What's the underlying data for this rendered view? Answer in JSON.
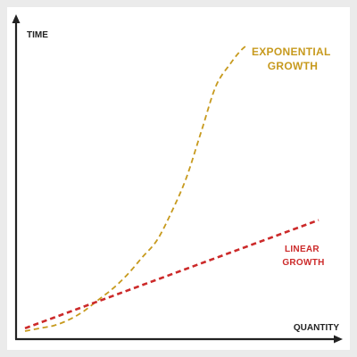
{
  "chart_data": {
    "type": "line",
    "title": "",
    "xlabel": "QUANTITY",
    "ylabel": "TIME",
    "grid": false,
    "legend": "none",
    "series": [
      {
        "name": "EXPONENTIAL GROWTH",
        "label_lines": [
          "EXPONENTIAL",
          "GROWTH"
        ],
        "color": "#c79a1e",
        "style": "dashed",
        "x": [
          0.0,
          0.05,
          0.1,
          0.15,
          0.2,
          0.25,
          0.3,
          0.35,
          0.4,
          0.45,
          0.5,
          0.55,
          0.6,
          0.65,
          0.7,
          0.73,
          0.75
        ],
        "y": [
          0.0,
          0.01,
          0.02,
          0.04,
          0.07,
          0.11,
          0.15,
          0.2,
          0.26,
          0.32,
          0.42,
          0.54,
          0.7,
          0.86,
          0.94,
          0.98,
          1.0
        ]
      },
      {
        "name": "LINEAR GROWTH",
        "label_lines": [
          "LINEAR",
          "GROWTH"
        ],
        "color": "#cc2a2a",
        "style": "dashed",
        "x": [
          0.0,
          1.0
        ],
        "y": [
          0.01,
          0.39
        ]
      }
    ]
  }
}
